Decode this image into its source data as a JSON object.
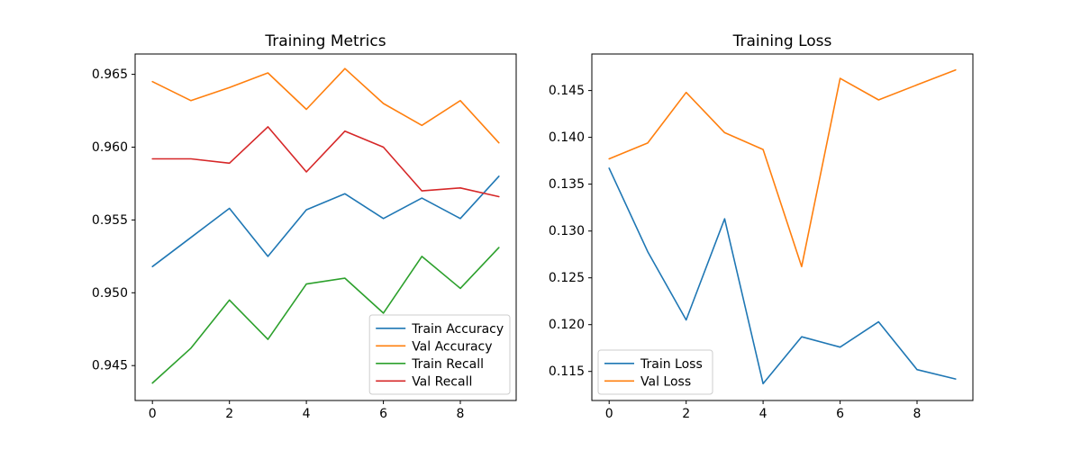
{
  "figure": {
    "background": "#ffffff",
    "text_color": "#000000",
    "spine_color": "#000000",
    "legend_border_color": "#cccccc"
  },
  "chart_data": [
    {
      "type": "line",
      "title": "Training Metrics",
      "x": [
        0,
        1,
        2,
        3,
        4,
        5,
        6,
        7,
        8,
        9
      ],
      "series": [
        {
          "name": "Train Accuracy",
          "color": "#1f77b4",
          "values": [
            0.9518,
            0.9538,
            0.9558,
            0.9525,
            0.9557,
            0.9568,
            0.9551,
            0.9565,
            0.9551,
            0.958
          ]
        },
        {
          "name": "Val Accuracy",
          "color": "#ff7f0e",
          "values": [
            0.9645,
            0.9632,
            0.9641,
            0.9651,
            0.9626,
            0.9654,
            0.963,
            0.9615,
            0.9632,
            0.9603
          ]
        },
        {
          "name": "Train Recall",
          "color": "#2ca02c",
          "values": [
            0.9438,
            0.9462,
            0.9495,
            0.9468,
            0.9506,
            0.951,
            0.9486,
            0.9525,
            0.9503,
            0.9531
          ]
        },
        {
          "name": "Val Recall",
          "color": "#d62728",
          "values": [
            0.9592,
            0.9592,
            0.9589,
            0.9614,
            0.9583,
            0.9611,
            0.96,
            0.957,
            0.9572,
            0.9566
          ]
        }
      ],
      "xlim": [
        -0.45,
        9.45
      ],
      "ylim": [
        0.9426,
        0.9664
      ],
      "xticks": [
        0,
        2,
        4,
        6,
        8
      ],
      "yticks": [
        0.945,
        0.95,
        0.955,
        0.96,
        0.965
      ],
      "ytick_labels": [
        "0.945",
        "0.950",
        "0.955",
        "0.960",
        "0.965"
      ],
      "grid": false,
      "legend_pos": "lower right"
    },
    {
      "type": "line",
      "title": "Training Loss",
      "x": [
        0,
        1,
        2,
        3,
        4,
        5,
        6,
        7,
        8,
        9
      ],
      "series": [
        {
          "name": "Train Loss",
          "color": "#1f77b4",
          "values": [
            0.1367,
            0.1278,
            0.1205,
            0.1313,
            0.1137,
            0.1187,
            0.1176,
            0.1203,
            0.1152,
            0.1142
          ]
        },
        {
          "name": "Val Loss",
          "color": "#ff7f0e",
          "values": [
            0.1377,
            0.1394,
            0.1448,
            0.1405,
            0.1387,
            0.1262,
            0.1463,
            0.144,
            0.1456,
            0.1472
          ]
        }
      ],
      "xlim": [
        -0.45,
        9.45
      ],
      "ylim": [
        0.1119,
        0.1489
      ],
      "xticks": [
        0,
        2,
        4,
        6,
        8
      ],
      "yticks": [
        0.115,
        0.12,
        0.125,
        0.13,
        0.135,
        0.14,
        0.145
      ],
      "ytick_labels": [
        "0.115",
        "0.120",
        "0.125",
        "0.130",
        "0.135",
        "0.140",
        "0.145"
      ],
      "grid": false,
      "legend_pos": "lower left"
    }
  ]
}
